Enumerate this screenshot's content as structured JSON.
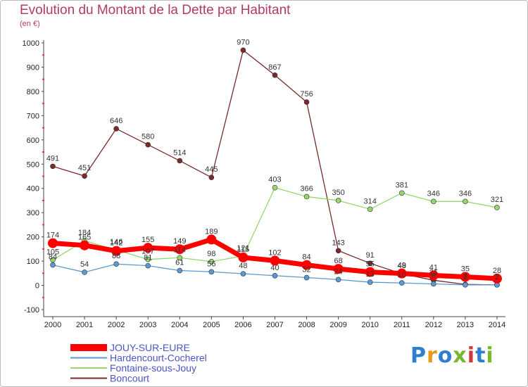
{
  "title": "Evolution du Montant de la Dette par Habitant",
  "unit": "(en €)",
  "logo": "Proxiti",
  "chart_data": {
    "type": "line",
    "x": [
      "2000",
      "2001",
      "2002",
      "2003",
      "2004",
      "2005",
      "2006",
      "2007",
      "2008",
      "2009",
      "2010",
      "2011",
      "2012",
      "2013",
      "2014"
    ],
    "ylim": [
      -100,
      1000
    ],
    "yticks": [
      -100,
      0,
      100,
      200,
      300,
      400,
      500,
      600,
      700,
      800,
      900,
      1000
    ],
    "grid": false,
    "legend_position": "bottom-left",
    "series": [
      {
        "name": "JOUY-SUR-EURE",
        "color": "#ff0000",
        "values": [
          174,
          165,
          142,
          155,
          149,
          189,
          115,
          102,
          84,
          68,
          55,
          49,
          41,
          35,
          28
        ]
      },
      {
        "name": "Hardencourt-Cocherel",
        "color": "#5a9ad2",
        "values": [
          84,
          54,
          88,
          81,
          61,
          56,
          48,
          40,
          32,
          24,
          13,
          10,
          6,
          2,
          2
        ]
      },
      {
        "name": "Fontaine-sous-Jouy",
        "color": "#96d66e",
        "values": [
          105,
          184,
          146,
          107,
          114,
          98,
          121,
          403,
          366,
          350,
          314,
          381,
          346,
          346,
          321
        ]
      },
      {
        "name": "Boncourt",
        "color": "#7a2a2a",
        "values": [
          491,
          451,
          646,
          580,
          514,
          445,
          970,
          867,
          756,
          143,
          91,
          48,
          21,
          4,
          2
        ]
      }
    ]
  }
}
